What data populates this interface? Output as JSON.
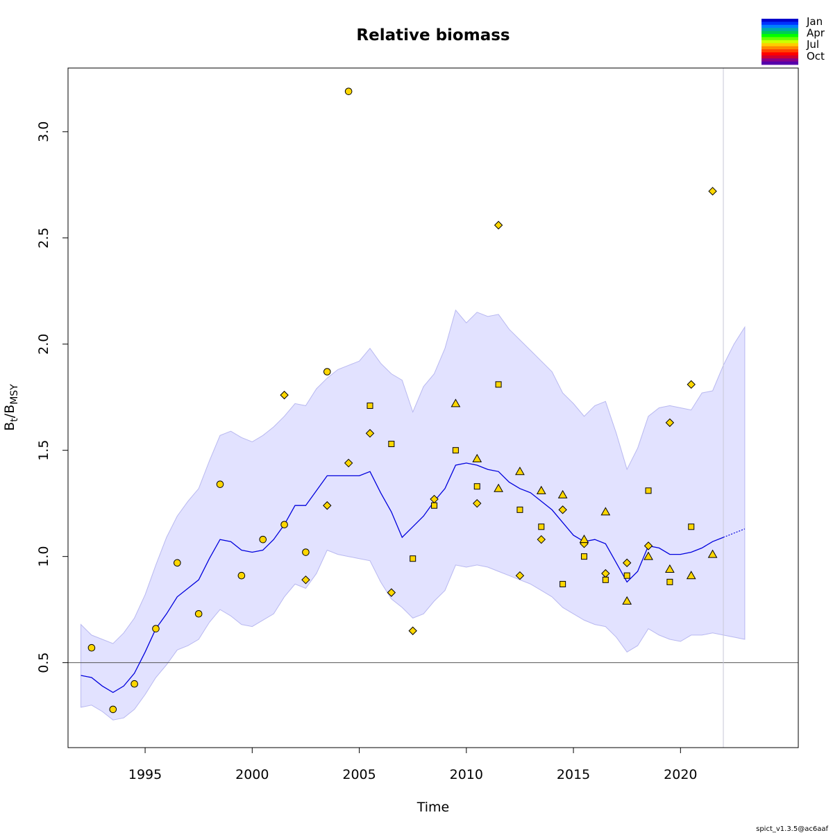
{
  "chart_data": {
    "type": "scatter",
    "title": "Relative biomass",
    "xlabel": "Time",
    "ylabel": {
      "main": "B",
      "sub1": "t",
      "slash": "/B",
      "sub2": "MSY"
    },
    "xlim": [
      1991.4,
      2025.5
    ],
    "ylim": [
      0.1,
      3.3
    ],
    "x_ticks": [
      1995,
      2000,
      2005,
      2010,
      2015,
      2020
    ],
    "y_ticks": [
      0.5,
      1.0,
      1.5,
      2.0,
      2.5,
      3.0
    ],
    "x_tick_labels": [
      "1995",
      "2000",
      "2005",
      "2010",
      "2015",
      "2020"
    ],
    "y_tick_labels": [
      "0.5",
      "1.0",
      "1.5",
      "2.0",
      "2.5",
      "3.0"
    ],
    "reference_line": 0.5,
    "forecast_start": 2022.0,
    "version_label": "spict_v1.3.5@ac6aaf",
    "legend": {
      "placement": "top-right",
      "labels": [
        "Jan",
        "Apr",
        "Jul",
        "Oct"
      ],
      "colors": [
        "#0000CC",
        "#0033FF",
        "#0080FF",
        "#00AAAA",
        "#00CC55",
        "#00FF00",
        "#66FF00",
        "#CCFF00",
        "#FFCC00",
        "#FF8800",
        "#FF4400",
        "#FF0000",
        "#CC0033",
        "#880088",
        "#5500AA"
      ]
    },
    "colors": {
      "line": "#0000DD",
      "band": "#E2E2FF",
      "band_edge": "#B8B8F0",
      "point_fill": "#FFD700",
      "point_stroke": "#000000"
    },
    "biomass": {
      "x": [
        1992.0,
        1992.5,
        1993.0,
        1993.5,
        1994.0,
        1994.5,
        1995.0,
        1995.5,
        1996.0,
        1996.5,
        1997.0,
        1997.5,
        1998.0,
        1998.5,
        1999.0,
        1999.5,
        2000.0,
        2000.5,
        2001.0,
        2001.5,
        2002.0,
        2002.5,
        2003.0,
        2003.5,
        2004.0,
        2004.5,
        2005.0,
        2005.5,
        2006.0,
        2006.5,
        2007.0,
        2007.5,
        2008.0,
        2008.5,
        2009.0,
        2009.5,
        2010.0,
        2010.5,
        2011.0,
        2011.5,
        2012.0,
        2012.5,
        2013.0,
        2013.5,
        2014.0,
        2014.5,
        2015.0,
        2015.5,
        2016.0,
        2016.5,
        2017.0,
        2017.5,
        2018.0,
        2018.5,
        2019.0,
        2019.5,
        2020.0,
        2020.5,
        2021.0,
        2021.5,
        2022.0
      ],
      "est": [
        0.44,
        0.43,
        0.39,
        0.36,
        0.39,
        0.45,
        0.55,
        0.66,
        0.73,
        0.81,
        0.85,
        0.89,
        0.99,
        1.08,
        1.07,
        1.03,
        1.02,
        1.03,
        1.08,
        1.15,
        1.24,
        1.24,
        1.31,
        1.38,
        1.38,
        1.38,
        1.38,
        1.4,
        1.3,
        1.21,
        1.09,
        1.14,
        1.19,
        1.26,
        1.32,
        1.43,
        1.44,
        1.43,
        1.41,
        1.4,
        1.35,
        1.32,
        1.3,
        1.26,
        1.22,
        1.16,
        1.1,
        1.07,
        1.08,
        1.06,
        0.97,
        0.88,
        0.93,
        1.05,
        1.04,
        1.01,
        1.01,
        1.02,
        1.04,
        1.07,
        1.09
      ],
      "upper": [
        0.68,
        0.63,
        0.61,
        0.59,
        0.64,
        0.71,
        0.82,
        0.96,
        1.09,
        1.19,
        1.26,
        1.32,
        1.45,
        1.57,
        1.59,
        1.56,
        1.54,
        1.57,
        1.61,
        1.66,
        1.72,
        1.71,
        1.79,
        1.84,
        1.88,
        1.9,
        1.92,
        1.98,
        1.91,
        1.86,
        1.83,
        1.68,
        1.8,
        1.86,
        1.98,
        2.16,
        2.1,
        2.15,
        2.13,
        2.14,
        2.07,
        2.02,
        1.97,
        1.92,
        1.87,
        1.77,
        1.72,
        1.66,
        1.71,
        1.73,
        1.58,
        1.41,
        1.51,
        1.66,
        1.7,
        1.71,
        1.7,
        1.69,
        1.77,
        1.78,
        1.9
      ],
      "lower": [
        0.29,
        0.3,
        0.27,
        0.23,
        0.24,
        0.28,
        0.35,
        0.43,
        0.49,
        0.56,
        0.58,
        0.61,
        0.69,
        0.75,
        0.72,
        0.68,
        0.67,
        0.7,
        0.73,
        0.81,
        0.87,
        0.85,
        0.92,
        1.03,
        1.01,
        1.0,
        0.99,
        0.98,
        0.88,
        0.8,
        0.76,
        0.71,
        0.73,
        0.79,
        0.84,
        0.96,
        0.95,
        0.96,
        0.95,
        0.93,
        0.91,
        0.89,
        0.87,
        0.84,
        0.81,
        0.76,
        0.73,
        0.7,
        0.68,
        0.67,
        0.62,
        0.55,
        0.58,
        0.66,
        0.63,
        0.61,
        0.6,
        0.63,
        0.63,
        0.64,
        0.63
      ]
    },
    "forecast": {
      "x": [
        2022.0,
        2022.5,
        2023.0
      ],
      "est": [
        1.09,
        1.11,
        1.13
      ],
      "upper": [
        1.9,
        2.0,
        2.08
      ],
      "lower": [
        0.63,
        0.62,
        0.61
      ]
    },
    "series": [
      {
        "shape": "circle",
        "x": [
          1992.5,
          1993.5,
          1994.5,
          1995.5,
          1996.5,
          1997.5,
          1998.5,
          1999.5,
          2000.5,
          2001.5,
          2002.5,
          2003.5,
          2004.5
        ],
        "y": [
          0.57,
          0.28,
          0.4,
          0.66,
          0.97,
          0.73,
          1.34,
          0.91,
          1.08,
          1.15,
          1.02,
          1.87,
          3.19
        ]
      },
      {
        "shape": "diamond",
        "x": [
          2001.5,
          2002.5,
          2003.5,
          2004.5,
          2005.5,
          2006.5,
          2007.5,
          2008.5,
          2010.5,
          2011.5,
          2012.5,
          2013.5,
          2014.5,
          2015.5,
          2016.5,
          2017.5,
          2018.5,
          2019.5,
          2020.5,
          2021.5
        ],
        "y": [
          1.76,
          0.89,
          1.24,
          1.44,
          1.58,
          0.83,
          0.65,
          1.27,
          1.25,
          2.56,
          0.91,
          1.08,
          1.22,
          1.06,
          0.92,
          0.97,
          1.05,
          1.63,
          1.81,
          2.72
        ]
      },
      {
        "shape": "square",
        "x": [
          2005.5,
          2006.5,
          2007.5,
          2008.5,
          2009.5,
          2010.5,
          2011.5,
          2012.5,
          2013.5,
          2014.5,
          2015.5,
          2016.5,
          2017.5,
          2018.5,
          2019.5,
          2020.5
        ],
        "y": [
          1.71,
          1.53,
          0.99,
          1.24,
          1.5,
          1.33,
          1.81,
          1.22,
          1.14,
          0.87,
          1.0,
          0.89,
          0.91,
          1.31,
          0.88,
          1.14
        ]
      },
      {
        "shape": "triangle",
        "x": [
          2009.5,
          2010.5,
          2011.5,
          2012.5,
          2013.5,
          2014.5,
          2015.5,
          2016.5,
          2017.5,
          2018.5,
          2019.5,
          2020.5,
          2021.5
        ],
        "y": [
          1.72,
          1.46,
          1.32,
          1.4,
          1.31,
          1.29,
          1.08,
          1.21,
          0.79,
          1.0,
          0.94,
          0.91,
          1.01
        ]
      }
    ]
  }
}
